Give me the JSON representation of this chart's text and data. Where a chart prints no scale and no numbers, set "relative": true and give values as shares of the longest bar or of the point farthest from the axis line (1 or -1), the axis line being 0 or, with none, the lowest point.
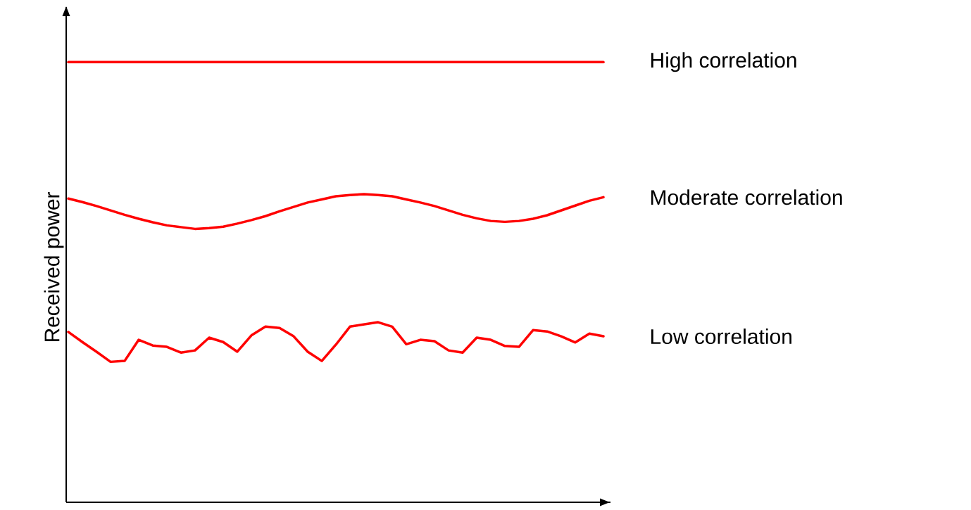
{
  "chart_data": {
    "type": "line",
    "relative": true,
    "ylabel": "Received power",
    "marker": "none",
    "line_style": "solid",
    "categories": [
      null,
      null,
      null,
      null,
      null,
      null,
      null,
      null,
      null,
      null,
      null,
      null,
      null,
      null,
      null,
      null,
      null,
      null,
      null,
      null,
      null,
      null,
      null,
      null,
      null,
      null,
      null,
      null,
      null,
      null,
      null,
      null,
      null,
      null,
      null,
      null,
      null,
      null,
      null
    ],
    "series": [
      {
        "name": "High correlation",
        "color": "#ff0000",
        "values": [
          1,
          1,
          1,
          1,
          1,
          1,
          1,
          1,
          1,
          1,
          1,
          1,
          1,
          1,
          1,
          1,
          1,
          1,
          1,
          1,
          1,
          1,
          1,
          1,
          1,
          1,
          1,
          1,
          1,
          1,
          1,
          1,
          1,
          1,
          1,
          1,
          1,
          1,
          1
        ]
      },
      {
        "name": "Moderate correlation",
        "color": "#ff0000",
        "values": [
          0.69,
          0.682,
          0.673,
          0.663,
          0.653,
          0.644,
          0.636,
          0.629,
          0.625,
          0.621,
          0.623,
          0.626,
          0.633,
          0.641,
          0.65,
          0.661,
          0.671,
          0.681,
          0.688,
          0.695,
          0.698,
          0.7,
          0.698,
          0.695,
          0.688,
          0.681,
          0.673,
          0.663,
          0.653,
          0.645,
          0.639,
          0.637,
          0.639,
          0.644,
          0.652,
          0.663,
          0.674,
          0.685,
          0.693
        ]
      },
      {
        "name": "Low correlation",
        "color": "#ff0000",
        "values": [
          0.387,
          0.364,
          0.342,
          0.319,
          0.321,
          0.369,
          0.356,
          0.353,
          0.34,
          0.345,
          0.374,
          0.364,
          0.342,
          0.379,
          0.399,
          0.396,
          0.377,
          0.342,
          0.321,
          0.358,
          0.399,
          0.404,
          0.409,
          0.399,
          0.359,
          0.369,
          0.366,
          0.345,
          0.34,
          0.374,
          0.369,
          0.355,
          0.353,
          0.391,
          0.388,
          0.377,
          0.363,
          0.383,
          0.377
        ]
      }
    ]
  }
}
